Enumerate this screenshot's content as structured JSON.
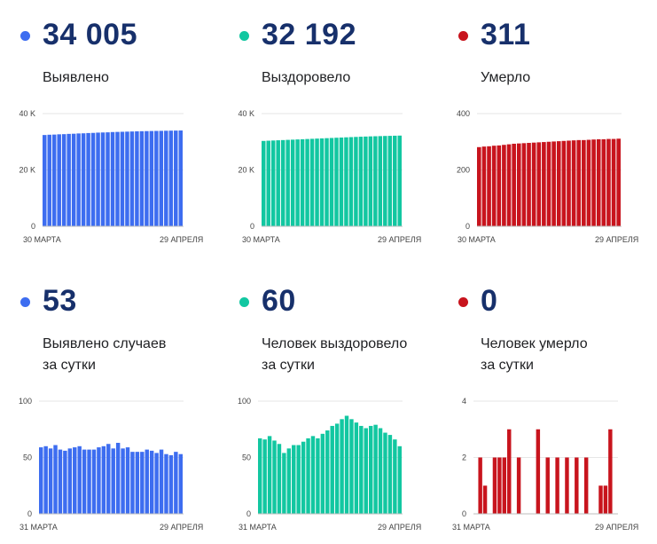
{
  "cards": [
    {
      "value": "34 005",
      "label": "Выявлено",
      "color": "#3d6df0"
    },
    {
      "value": "32 192",
      "label": "Выздоровело",
      "color": "#12c7a1"
    },
    {
      "value": "311",
      "label": "Умерло",
      "color": "#c8141d"
    },
    {
      "value": "53",
      "label": "Выявлено случаев\nза сутки",
      "color": "#3d6df0"
    },
    {
      "value": "60",
      "label": "Человек выздоровело\nза сутки",
      "color": "#12c7a1"
    },
    {
      "value": "0",
      "label": "Человек умерло\nза сутки",
      "color": "#c8141d"
    }
  ],
  "chart_data": [
    {
      "type": "bar",
      "color": "#3d6df0",
      "ylim": [
        0,
        40000
      ],
      "yticks": [
        "0",
        "20 K",
        "40 K"
      ],
      "ytick_values": [
        0,
        20000,
        40000
      ],
      "x_start": "30 МАРТА",
      "x_end": "29 АПРЕЛЯ",
      "values": [
        32400,
        32500,
        32550,
        32650,
        32700,
        32800,
        32850,
        32950,
        33000,
        33100,
        33150,
        33250,
        33300,
        33350,
        33450,
        33500,
        33550,
        33600,
        33650,
        33700,
        33750,
        33780,
        33820,
        33850,
        33880,
        33920,
        33950,
        33970,
        34005
      ]
    },
    {
      "type": "bar",
      "color": "#12c7a1",
      "ylim": [
        0,
        40000
      ],
      "yticks": [
        "0",
        "20 K",
        "40 K"
      ],
      "ytick_values": [
        0,
        20000,
        40000
      ],
      "x_start": "30 МАРТА",
      "x_end": "29 АПРЕЛЯ",
      "values": [
        30300,
        30380,
        30450,
        30530,
        30600,
        30680,
        30750,
        30830,
        30900,
        30980,
        31050,
        31130,
        31200,
        31280,
        31350,
        31430,
        31500,
        31580,
        31650,
        31720,
        31790,
        31850,
        31910,
        31960,
        32010,
        32060,
        32100,
        32150,
        32192
      ]
    },
    {
      "type": "bar",
      "color": "#c8141d",
      "ylim": [
        0,
        400
      ],
      "yticks": [
        "0",
        "200",
        "400"
      ],
      "ytick_values": [
        0,
        200,
        400
      ],
      "x_start": "30 МАРТА",
      "x_end": "29 АПРЕЛЯ",
      "values": [
        281,
        283,
        284,
        286,
        287,
        289,
        291,
        293,
        294,
        295,
        296,
        297,
        298,
        299,
        300,
        301,
        302,
        303,
        304,
        305,
        306,
        306,
        307,
        308,
        309,
        309,
        310,
        310,
        311
      ]
    },
    {
      "type": "bar",
      "color": "#3d6df0",
      "ylim": [
        0,
        100
      ],
      "yticks": [
        "0",
        "50",
        "100"
      ],
      "ytick_values": [
        0,
        50,
        100
      ],
      "x_start": "31 МАРТА",
      "x_end": "29 АПРЕЛЯ",
      "values": [
        59,
        60,
        58,
        61,
        57,
        56,
        58,
        59,
        60,
        57,
        57,
        57,
        59,
        60,
        62,
        58,
        63,
        58,
        59,
        55,
        55,
        55,
        57,
        56,
        54,
        57,
        53,
        52,
        55,
        53
      ]
    },
    {
      "type": "bar",
      "color": "#12c7a1",
      "ylim": [
        0,
        100
      ],
      "yticks": [
        "0",
        "50",
        "100"
      ],
      "ytick_values": [
        0,
        50,
        100
      ],
      "x_start": "31 МАРТА",
      "x_end": "29 АПРЕЛЯ",
      "values": [
        67,
        66,
        69,
        65,
        62,
        54,
        58,
        61,
        61,
        64,
        67,
        69,
        67,
        71,
        74,
        78,
        80,
        84,
        87,
        84,
        81,
        78,
        76,
        78,
        79,
        76,
        72,
        70,
        66,
        60
      ]
    },
    {
      "type": "bar",
      "color": "#c8141d",
      "ylim": [
        0,
        4
      ],
      "yticks": [
        "0",
        "2",
        "4"
      ],
      "ytick_values": [
        0,
        2,
        4
      ],
      "x_start": "31 МАРТА",
      "x_end": "29 АПРЕЛЯ",
      "values": [
        0,
        2,
        1,
        0,
        2,
        2,
        2,
        3,
        0,
        2,
        0,
        0,
        0,
        3,
        0,
        2,
        0,
        2,
        0,
        2,
        0,
        2,
        0,
        2,
        0,
        0,
        1,
        1,
        3,
        0
      ]
    }
  ]
}
